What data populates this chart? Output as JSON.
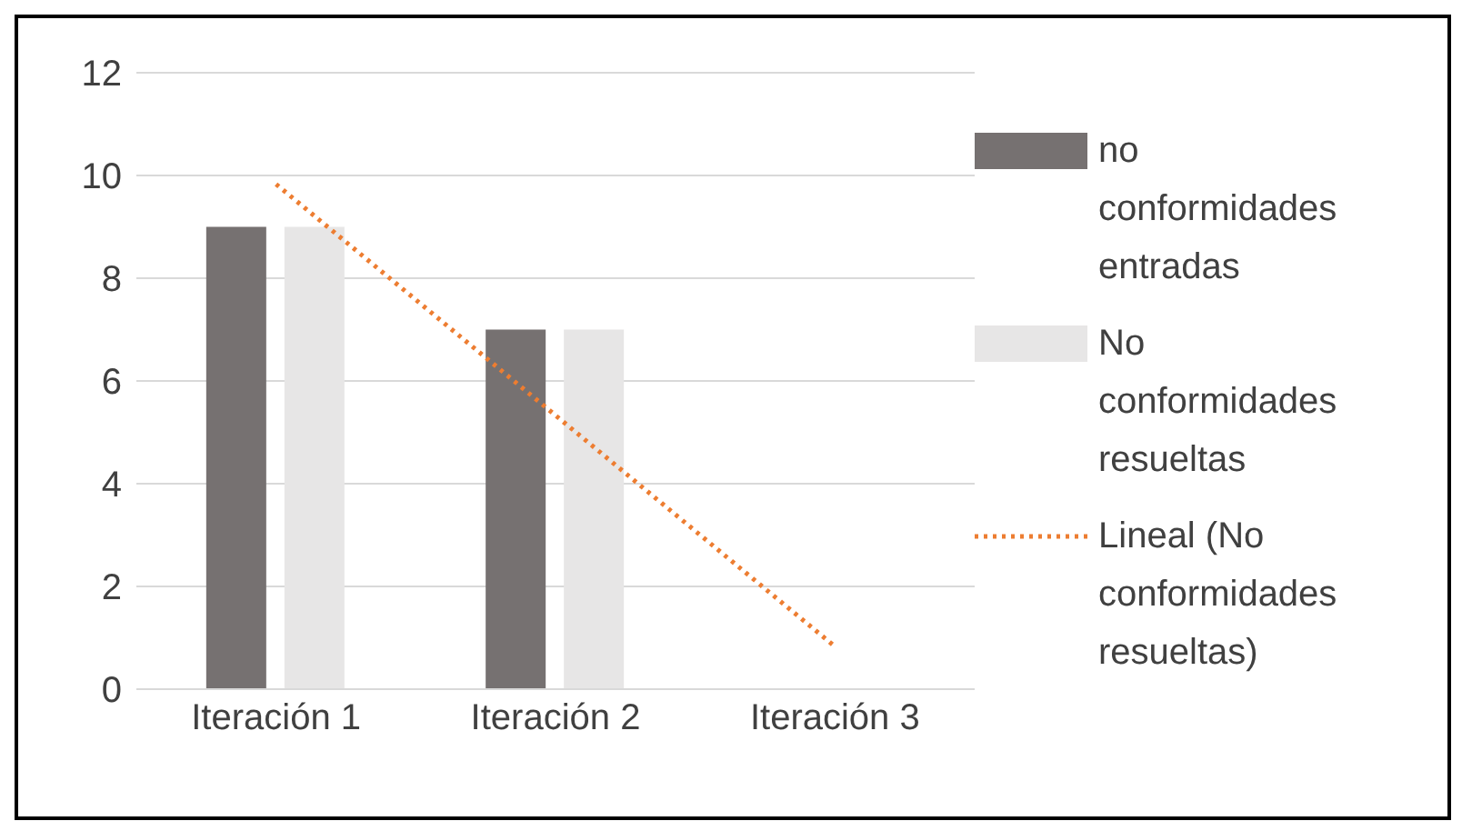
{
  "chart_data": {
    "type": "bar",
    "categories": [
      "Iteración 1",
      "Iteración 2",
      "Iteración 3"
    ],
    "series": [
      {
        "name": "no conformidades entradas",
        "color": "#767171",
        "values": [
          9,
          7,
          0
        ]
      },
      {
        "name": "No conformidades resueltas",
        "color": "#e7e6e6",
        "values": [
          9,
          7,
          0
        ]
      },
      {
        "name": "Lineal (No conformidades resueltas)",
        "type": "line",
        "color": "#ed7d31",
        "x": [
          "Iteración 1",
          "Iteración 2",
          "Iteración 3"
        ],
        "values": [
          9.83,
          5.33,
          0.83
        ],
        "line_style": "dotted",
        "marker": "none"
      }
    ],
    "ylim": [
      0,
      12
    ],
    "yticks": [
      0,
      2,
      4,
      6,
      8,
      10,
      12
    ],
    "grid": "y",
    "legend": "right"
  }
}
